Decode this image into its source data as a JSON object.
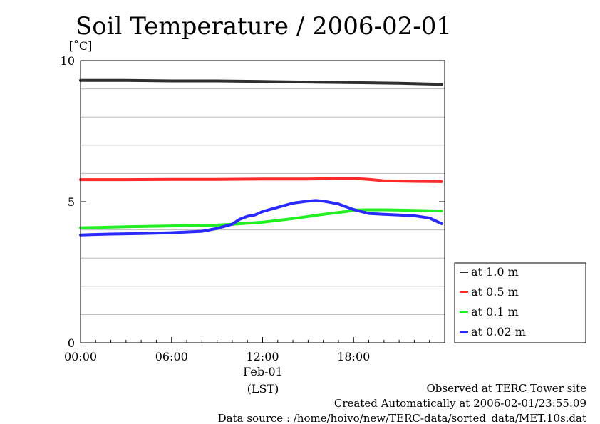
{
  "chart_data": {
    "type": "line",
    "title": "Soil Temperature / 2006-02-01",
    "ylabel": "[˚C]",
    "xlabel_date": "Feb-01",
    "xlabel_unit": "(LST)",
    "ylim": [
      0,
      10
    ],
    "xlim": [
      0,
      24
    ],
    "yticks": [
      {
        "value": 0,
        "label": "0"
      },
      {
        "value": 5,
        "label": "5"
      },
      {
        "value": 10,
        "label": "10"
      }
    ],
    "ygrid": [
      1,
      2,
      3,
      4,
      6,
      7,
      8,
      9
    ],
    "xticks": [
      {
        "value": 0,
        "label": "00:00"
      },
      {
        "value": 6,
        "label": "06:00"
      },
      {
        "value": 12,
        "label": "12:00"
      },
      {
        "value": 18,
        "label": "18:00"
      }
    ],
    "grid": true,
    "legend_position": "bottom-right",
    "series": [
      {
        "name": "at 1.0 m",
        "color": "#2f2f2f",
        "x": [
          0,
          3,
          6,
          9,
          12,
          15,
          18,
          21,
          23.8
        ],
        "y": [
          9.3,
          9.3,
          9.28,
          9.28,
          9.26,
          9.24,
          9.22,
          9.2,
          9.16
        ]
      },
      {
        "name": "at 0.5 m",
        "color": "#ff2a2a",
        "x": [
          0,
          3,
          6,
          9,
          12,
          15,
          17,
          18,
          19,
          20,
          22,
          23.8
        ],
        "y": [
          5.78,
          5.78,
          5.79,
          5.79,
          5.8,
          5.8,
          5.82,
          5.82,
          5.79,
          5.74,
          5.72,
          5.71
        ]
      },
      {
        "name": "at 0.1 m",
        "color": "#22ee22",
        "x": [
          0,
          3,
          6,
          9,
          10,
          12,
          14,
          16,
          17.5,
          18,
          19,
          20,
          21,
          22,
          23.8
        ],
        "y": [
          4.07,
          4.11,
          4.14,
          4.17,
          4.2,
          4.27,
          4.4,
          4.55,
          4.65,
          4.7,
          4.71,
          4.71,
          4.7,
          4.69,
          4.67
        ]
      },
      {
        "name": "at 0.02 m",
        "color": "#2a2aff",
        "x": [
          0,
          2,
          4,
          6,
          8,
          9,
          10,
          10.5,
          11,
          11.5,
          12,
          13,
          14,
          15,
          15.5,
          16,
          17,
          18,
          19,
          20,
          22,
          23,
          23.8
        ],
        "y": [
          3.82,
          3.85,
          3.87,
          3.9,
          3.95,
          4.05,
          4.2,
          4.38,
          4.48,
          4.53,
          4.65,
          4.8,
          4.95,
          5.02,
          5.04,
          5.02,
          4.92,
          4.72,
          4.58,
          4.55,
          4.5,
          4.42,
          4.22
        ]
      }
    ]
  },
  "footer": {
    "site": "Observed at TERC Tower site",
    "created": "Created Automatically at 2006-02-01/23:55:09",
    "source": "Data source : /home/hoivo/new/TERC-data/sorted_data/MET.10s.dat"
  }
}
